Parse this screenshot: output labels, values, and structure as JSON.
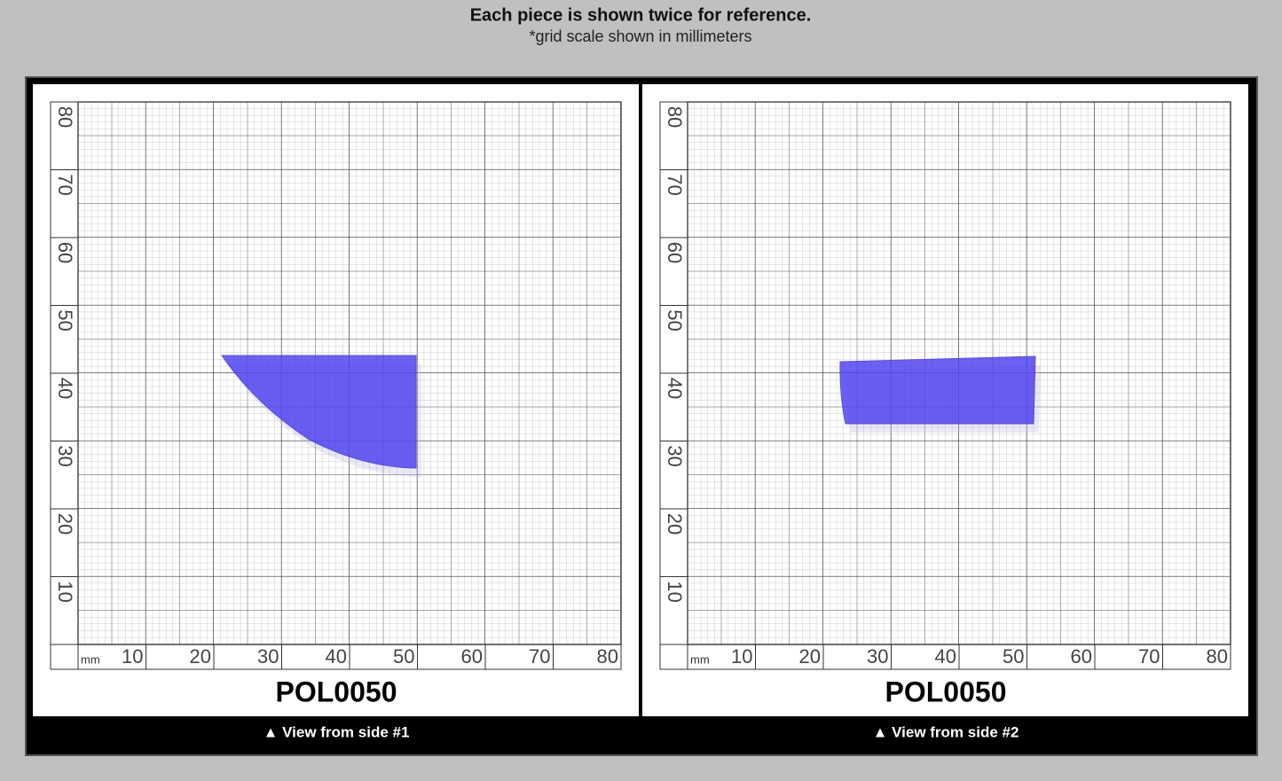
{
  "header": {
    "title": "Each piece is shown twice for reference.",
    "subtitle": "*grid scale shown in millimeters"
  },
  "panels": [
    {
      "label": "POL0050",
      "caption": "▲ View from side #1",
      "unit": "mm",
      "x_labels": [
        10,
        20,
        30,
        40,
        50,
        60,
        70,
        80
      ],
      "y_labels": [
        10,
        20,
        30,
        40,
        50,
        60,
        70,
        80
      ]
    },
    {
      "label": "POL0050",
      "caption": "▲ View from side #2",
      "unit": "mm",
      "x_labels": [
        10,
        20,
        30,
        40,
        50,
        60,
        70,
        80
      ],
      "y_labels": [
        10,
        20,
        30,
        40,
        50,
        60,
        70,
        80
      ]
    }
  ]
}
